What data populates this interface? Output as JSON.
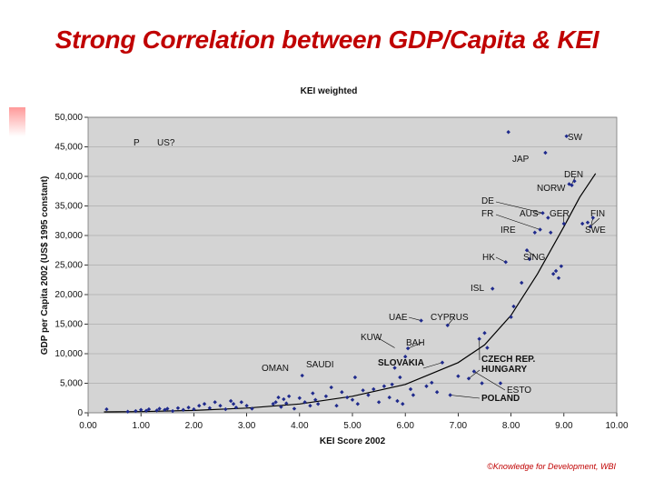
{
  "slide": {
    "title": "Strong Correlation between GDP/Capita & KEI",
    "credit": "©Knowledge for Development, WBI"
  },
  "chart_data": {
    "type": "scatter",
    "title": "KEI weighted",
    "xlabel": "KEI Score 2002",
    "ylabel": "GDP per Capita 2002 (US$ 1995 constant)",
    "xlim": [
      0,
      10
    ],
    "ylim": [
      0,
      50000
    ],
    "xticks": [
      "0.00",
      "1.00",
      "2.00",
      "3.00",
      "4.00",
      "5.00",
      "6.00",
      "7.00",
      "8.00",
      "9.00",
      "10.00"
    ],
    "yticks": [
      "0",
      "5,000",
      "10,000",
      "15,000",
      "20,000",
      "25,000",
      "30,000",
      "35,000",
      "40,000",
      "45,000",
      "50,000"
    ],
    "gridlines": true,
    "background": "#d4d4d4",
    "point_color": "#1f2a8c",
    "highlight_color": "#1f2a8c",
    "trend": [
      [
        0.3,
        150
      ],
      [
        1,
        200
      ],
      [
        2,
        400
      ],
      [
        3,
        800
      ],
      [
        4,
        1500
      ],
      [
        5,
        2800
      ],
      [
        6,
        4800
      ],
      [
        7,
        8500
      ],
      [
        7.5,
        11500
      ],
      [
        8,
        16500
      ],
      [
        8.5,
        23500
      ],
      [
        9,
        31500
      ],
      [
        9.3,
        36500
      ],
      [
        9.6,
        40500
      ]
    ],
    "points": [
      [
        0.35,
        600
      ],
      [
        0.75,
        200
      ],
      [
        0.9,
        300
      ],
      [
        1.0,
        500
      ],
      [
        1.1,
        350
      ],
      [
        1.15,
        600
      ],
      [
        1.3,
        400
      ],
      [
        1.35,
        700
      ],
      [
        1.45,
        500
      ],
      [
        1.5,
        700
      ],
      [
        1.6,
        300
      ],
      [
        1.7,
        800
      ],
      [
        1.8,
        500
      ],
      [
        1.9,
        900
      ],
      [
        2.0,
        600
      ],
      [
        2.1,
        1200
      ],
      [
        2.2,
        1500
      ],
      [
        2.3,
        800
      ],
      [
        2.4,
        1800
      ],
      [
        2.5,
        1200
      ],
      [
        2.6,
        600
      ],
      [
        2.7,
        2000
      ],
      [
        2.75,
        1500
      ],
      [
        2.8,
        900
      ],
      [
        2.9,
        1800
      ],
      [
        3.0,
        1200
      ],
      [
        3.1,
        700
      ],
      [
        3.5,
        1500
      ],
      [
        3.55,
        1800
      ],
      [
        3.6,
        2600
      ],
      [
        3.65,
        1000
      ],
      [
        3.7,
        2300
      ],
      [
        3.75,
        1600
      ],
      [
        3.8,
        2800
      ],
      [
        3.9,
        700
      ],
      [
        4.0,
        2500
      ],
      [
        4.05,
        6300
      ],
      [
        4.1,
        1800
      ],
      [
        4.2,
        1200
      ],
      [
        4.25,
        3300
      ],
      [
        4.3,
        2200
      ],
      [
        4.35,
        1500
      ],
      [
        4.5,
        2800
      ],
      [
        4.6,
        4300
      ],
      [
        4.7,
        1200
      ],
      [
        4.8,
        3500
      ],
      [
        4.9,
        2600
      ],
      [
        5.0,
        2200
      ],
      [
        5.05,
        6000
      ],
      [
        5.1,
        1500
      ],
      [
        5.2,
        3800
      ],
      [
        5.3,
        3000
      ],
      [
        5.4,
        4000
      ],
      [
        5.5,
        1800
      ],
      [
        5.6,
        4500
      ],
      [
        5.7,
        2600
      ],
      [
        5.75,
        4800
      ],
      [
        5.8,
        7600
      ],
      [
        5.85,
        2000
      ],
      [
        5.9,
        6000
      ],
      [
        5.95,
        1500
      ],
      [
        6.0,
        9500
      ],
      [
        6.05,
        10900
      ],
      [
        6.1,
        4000
      ],
      [
        6.15,
        3000
      ],
      [
        6.3,
        15600
      ],
      [
        6.4,
        4500
      ],
      [
        6.5,
        5100
      ],
      [
        6.6,
        3500
      ],
      [
        6.7,
        8500
      ],
      [
        6.8,
        14800
      ],
      [
        6.85,
        3000
      ],
      [
        7.0,
        6200
      ],
      [
        7.2,
        5800
      ],
      [
        7.3,
        7000
      ],
      [
        7.4,
        12500
      ],
      [
        7.45,
        5000
      ],
      [
        7.5,
        13500
      ],
      [
        7.55,
        11000
      ],
      [
        7.65,
        21000
      ],
      [
        7.8,
        5000
      ],
      [
        7.9,
        25500
      ],
      [
        8.0,
        16200
      ],
      [
        8.05,
        18000
      ],
      [
        8.2,
        22000
      ],
      [
        8.3,
        27500
      ],
      [
        8.35,
        26000
      ],
      [
        8.45,
        30500
      ],
      [
        8.55,
        31000
      ],
      [
        8.6,
        33800
      ],
      [
        8.7,
        33000
      ],
      [
        8.75,
        30500
      ],
      [
        8.8,
        23500
      ],
      [
        8.85,
        24000
      ],
      [
        8.9,
        22800
      ],
      [
        8.95,
        24800
      ],
      [
        9.0,
        32000
      ],
      [
        9.05,
        46800
      ],
      [
        9.1,
        38700
      ],
      [
        9.15,
        38500
      ],
      [
        9.2,
        39200
      ],
      [
        9.35,
        32000
      ],
      [
        9.45,
        32200
      ],
      [
        9.5,
        31500
      ],
      [
        9.55,
        33000
      ],
      [
        7.95,
        47500
      ],
      [
        8.65,
        44000
      ]
    ],
    "annotations": [
      {
        "text": "SW",
        "x": 9.05,
        "y": 46800
      },
      {
        "text": "JAP",
        "x": 8.65,
        "y": 44000
      },
      {
        "text": "DEN",
        "x": 9.15,
        "y": 38700
      },
      {
        "text": "NORW",
        "x": 9.1,
        "y": 38500
      },
      {
        "text": "DE",
        "x": 8.6,
        "y": 33800
      },
      {
        "text": "FR",
        "x": 8.55,
        "y": 31000
      },
      {
        "text": "AUS",
        "x": 8.6,
        "y": 33800
      },
      {
        "text": "GER",
        "x": 9.0,
        "y": 32000
      },
      {
        "text": "FIN",
        "x": 9.5,
        "y": 31500
      },
      {
        "text": "IRE",
        "x": 8.45,
        "y": 30500
      },
      {
        "text": "SWE",
        "x": 9.55,
        "y": 33000
      },
      {
        "text": "HK",
        "x": 7.9,
        "y": 25500
      },
      {
        "text": "SING",
        "x": 8.3,
        "y": 27500
      },
      {
        "text": "ISL",
        "x": 7.65,
        "y": 21000
      },
      {
        "text": "UAE",
        "x": 6.3,
        "y": 15600
      },
      {
        "text": "CYPRUS",
        "x": 6.8,
        "y": 14800
      },
      {
        "text": "KUW",
        "x": 5.8,
        "y": 11000
      },
      {
        "text": "BAH",
        "x": 6.05,
        "y": 10900
      },
      {
        "text": "OMAN",
        "x": 4.05,
        "y": 6300
      },
      {
        "text": "SAUDI",
        "x": 5.05,
        "y": 6000
      },
      {
        "text": "SLOVAKIA",
        "x": 6.7,
        "y": 8500
      },
      {
        "text": "CZECH REP.",
        "x": 7.4,
        "y": 12500
      },
      {
        "text": "HUNGARY",
        "x": 7.2,
        "y": 5800
      },
      {
        "text": "ESTO",
        "x": 7.3,
        "y": 7000
      },
      {
        "text": "POLAND",
        "x": 6.85,
        "y": 3000
      },
      {
        "text": "P",
        "x": 0,
        "y": 0
      },
      {
        "text": "US?",
        "x": 0,
        "y": 0
      }
    ]
  }
}
